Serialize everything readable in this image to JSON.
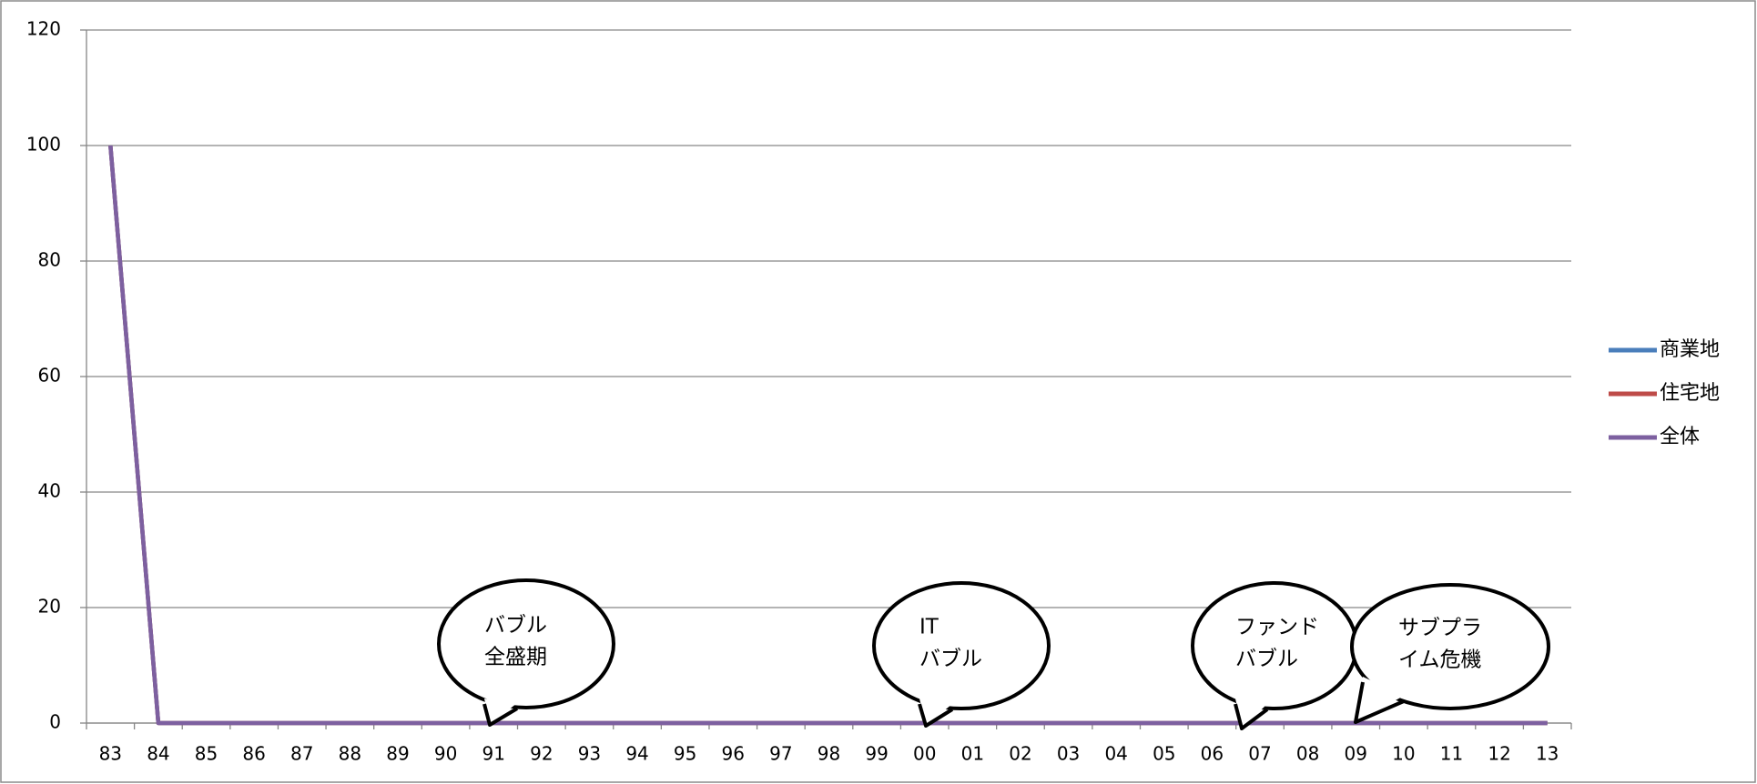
{
  "chart_data": {
    "type": "line",
    "categories": [
      "83",
      "84",
      "85",
      "86",
      "87",
      "88",
      "89",
      "90",
      "91",
      "92",
      "93",
      "94",
      "95",
      "96",
      "97",
      "98",
      "99",
      "00",
      "01",
      "02",
      "03",
      "04",
      "05",
      "06",
      "07",
      "08",
      "09",
      "10",
      "11",
      "12",
      "13"
    ],
    "series": [
      {
        "name": "商業地",
        "color": "#4a7ebb",
        "values": [
          100,
          0,
          0,
          0,
          0,
          0,
          0,
          0,
          0,
          0,
          0,
          0,
          0,
          0,
          0,
          0,
          0,
          0,
          0,
          0,
          0,
          0,
          0,
          0,
          0,
          0,
          0,
          0,
          0,
          0,
          0
        ]
      },
      {
        "name": "住宅地",
        "color": "#be4b48",
        "values": [
          100,
          0,
          0,
          0,
          0,
          0,
          0,
          0,
          0,
          0,
          0,
          0,
          0,
          0,
          0,
          0,
          0,
          0,
          0,
          0,
          0,
          0,
          0,
          0,
          0,
          0,
          0,
          0,
          0,
          0,
          0
        ]
      },
      {
        "name": "全体",
        "color": "#7d60a0",
        "values": [
          100,
          0,
          0,
          0,
          0,
          0,
          0,
          0,
          0,
          0,
          0,
          0,
          0,
          0,
          0,
          0,
          0,
          0,
          0,
          0,
          0,
          0,
          0,
          0,
          0,
          0,
          0,
          0,
          0,
          0,
          0
        ]
      }
    ],
    "ylim": [
      0,
      120
    ],
    "yticks": [
      0,
      20,
      40,
      60,
      80,
      100,
      120
    ],
    "grid": true,
    "legend": "right",
    "annotations": [
      {
        "lines": [
          "バブル",
          "全盛期"
        ]
      },
      {
        "lines": [
          "IT",
          "バブル"
        ]
      },
      {
        "lines": [
          "ファンド",
          "バブル"
        ]
      },
      {
        "lines": [
          "サブプラ",
          "イム危機"
        ]
      }
    ]
  }
}
